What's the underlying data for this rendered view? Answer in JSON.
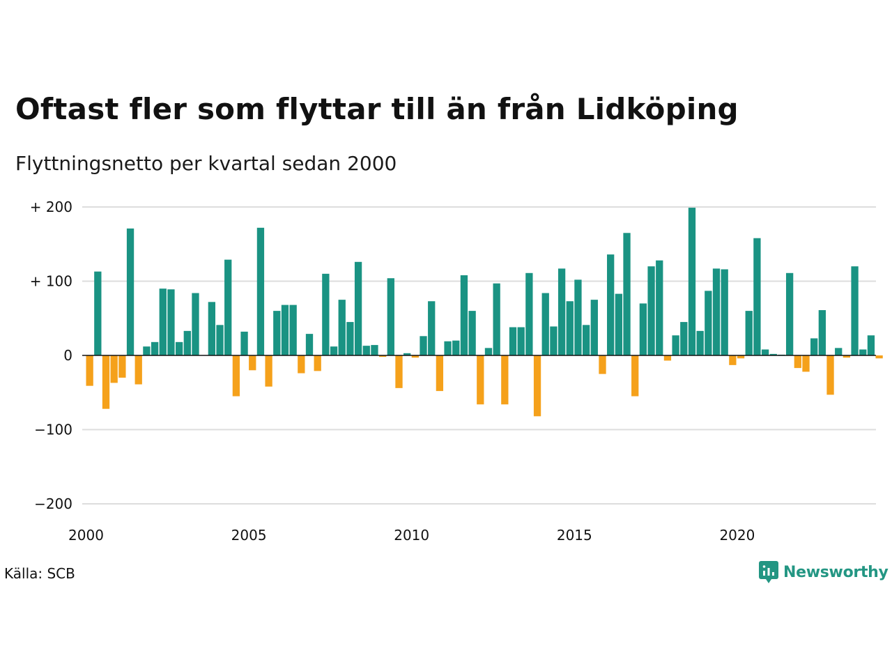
{
  "header": {
    "title": "Oftast fler som flyttar till än från Lidköping",
    "subtitle": "Flyttningsnetto per kvartal sedan 2000"
  },
  "footer": {
    "source": "Källa: SCB",
    "brand": "Newsworthy"
  },
  "colors": {
    "positive": "#1a9383",
    "negative": "#f5a11b",
    "grid": "#dddddd",
    "axis": "#111111",
    "brand": "#239683"
  },
  "chart_data": {
    "type": "bar",
    "title": "Oftast fler som flyttar till än från Lidköping",
    "subtitle": "Flyttningsnetto per kvartal sedan 2000",
    "ylim": [
      -200,
      200
    ],
    "yticks": [
      {
        "value": 200,
        "label": "+ 200"
      },
      {
        "value": 100,
        "label": "+ 100"
      },
      {
        "value": 0,
        "label": "0"
      },
      {
        "value": -100,
        "label": "−100"
      },
      {
        "value": -200,
        "label": "−200"
      }
    ],
    "xticks": [
      {
        "value": 2000,
        "label": "2000"
      },
      {
        "value": 2005,
        "label": "2005"
      },
      {
        "value": 2010,
        "label": "2010"
      },
      {
        "value": 2015,
        "label": "2015"
      },
      {
        "value": 2020,
        "label": "2020"
      }
    ],
    "start_year": 2000,
    "grid": true,
    "legend": "none",
    "values": [
      -41,
      113,
      -72,
      -37,
      -30,
      171,
      -39,
      12,
      18,
      90,
      89,
      18,
      33,
      84,
      0,
      72,
      41,
      129,
      -55,
      32,
      -20,
      172,
      -42,
      60,
      68,
      68,
      -24,
      29,
      -21,
      110,
      12,
      75,
      45,
      126,
      13,
      14,
      -2,
      104,
      -44,
      3,
      -3,
      26,
      73,
      -48,
      19,
      20,
      108,
      60,
      -66,
      10,
      97,
      -66,
      38,
      38,
      111,
      -82,
      84,
      39,
      117,
      73,
      102,
      41,
      75,
      -25,
      136,
      83,
      165,
      -55,
      70,
      120,
      128,
      -7,
      27,
      45,
      199,
      33,
      87,
      117,
      116,
      -13,
      -4,
      60,
      158,
      8,
      2,
      1,
      111,
      -17,
      -22,
      23,
      61,
      -53,
      10,
      -3,
      120,
      8,
      27,
      -4
    ]
  }
}
